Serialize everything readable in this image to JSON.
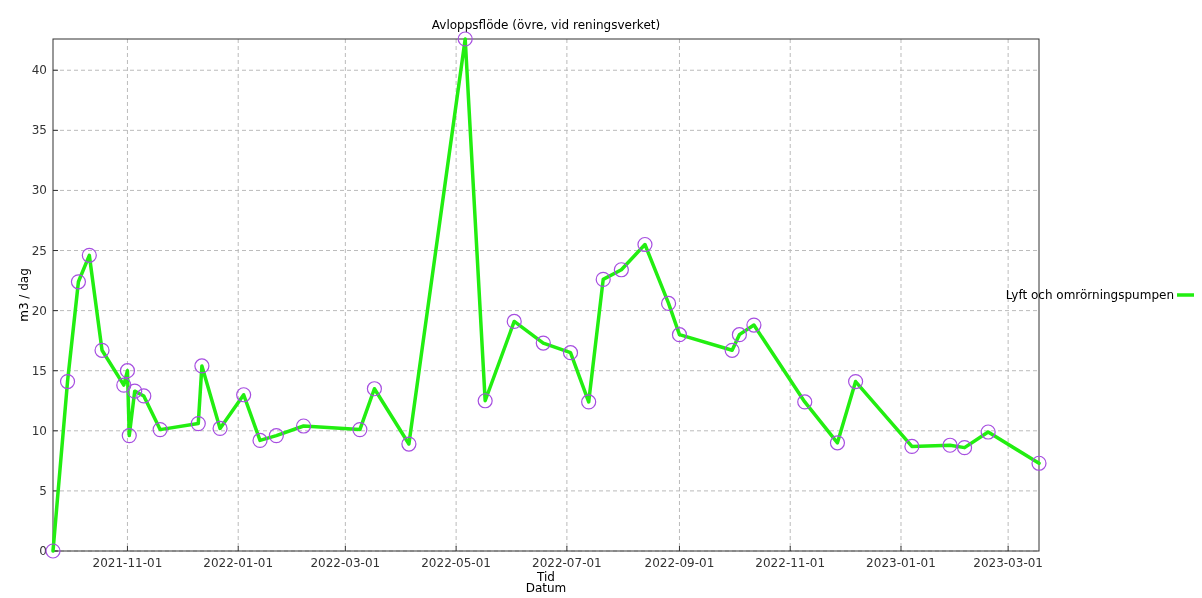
{
  "chart_data": {
    "type": "line",
    "title": "Avloppsflöde (övre, vid reningsverket)",
    "xlabel": "Tid",
    "ylabel": "m3 / dag",
    "annotations": [
      "Datum"
    ],
    "x": [
      "2021-09-21",
      "2021-09-29",
      "2021-10-05",
      "2021-10-11",
      "2021-10-18",
      "2021-10-30",
      "2021-11-01",
      "2021-11-02",
      "2021-11-05",
      "2021-11-10",
      "2021-11-19",
      "2021-12-10",
      "2021-12-12",
      "2021-12-22",
      "2022-01-04",
      "2022-01-13",
      "2022-01-22",
      "2022-02-06",
      "2022-03-09",
      "2022-03-17",
      "2022-04-05",
      "2022-05-06",
      "2022-05-17",
      "2022-06-02",
      "2022-06-18",
      "2022-07-03",
      "2022-07-13",
      "2022-07-21",
      "2022-07-31",
      "2022-08-13",
      "2022-08-26",
      "2022-09-01",
      "2022-09-30",
      "2022-10-04",
      "2022-10-12",
      "2022-11-09",
      "2022-11-27",
      "2022-12-07",
      "2023-01-07",
      "2023-01-28",
      "2023-02-05",
      "2023-02-18",
      "2023-03-18"
    ],
    "series": [
      {
        "name": "Lyft och omrörningspumpen",
        "color": "#22ee11",
        "values": [
          0,
          14.1,
          22.4,
          24.6,
          16.7,
          13.8,
          15.0,
          9.6,
          13.3,
          12.9,
          10.1,
          10.6,
          15.4,
          10.2,
          13.0,
          9.2,
          9.6,
          10.4,
          10.1,
          13.5,
          8.9,
          42.6,
          12.5,
          19.1,
          17.3,
          16.5,
          12.4,
          22.6,
          23.4,
          25.5,
          20.6,
          18.0,
          16.7,
          18.0,
          18.8,
          12.4,
          9.0,
          14.1,
          8.7,
          8.8,
          8.6,
          9.9,
          7.3
        ]
      }
    ],
    "xlim": [
      "2021-09-21",
      "2023-03-18"
    ],
    "xticks": [
      "2021-11-01",
      "2022-01-01",
      "2022-03-01",
      "2022-05-01",
      "2022-07-01",
      "2022-09-01",
      "2022-11-01",
      "2023-01-01",
      "2023-03-01"
    ],
    "ylim": [
      0,
      42.6
    ],
    "yticks": [
      0,
      5,
      10,
      15,
      20,
      25,
      30,
      35,
      40
    ],
    "grid": true,
    "legend": "right",
    "marker": "circle",
    "line_style": "solid"
  }
}
